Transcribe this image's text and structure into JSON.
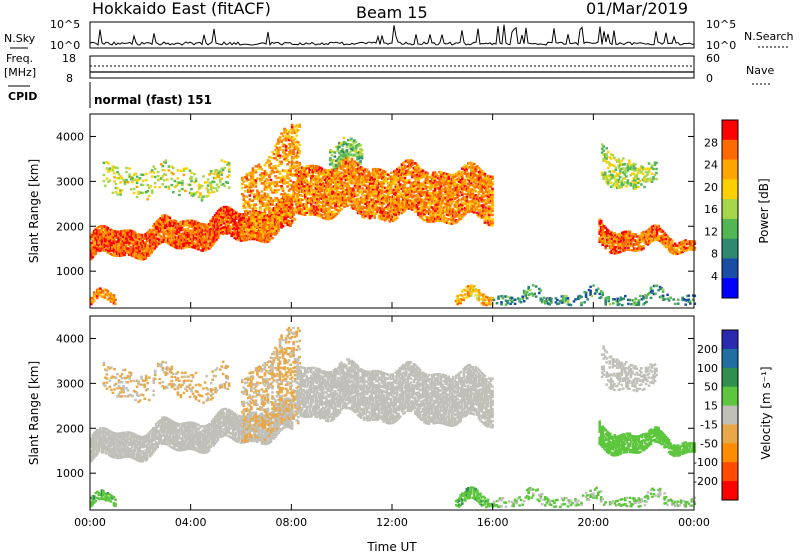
{
  "header": {
    "radar": "Hokkaido East (fitACF)",
    "beam": "Beam 15",
    "date": "01/Mar/2019"
  },
  "top_panels": {
    "nsky": {
      "label": "N.Sky",
      "left_ticks": [
        "10^5",
        "10^0"
      ],
      "right_ticks": [
        "10^5",
        "10^0"
      ],
      "right_label": "N.Search"
    },
    "freq": {
      "label_line1": "Freq.",
      "label_line2": "[MHz]",
      "left_ticks": [
        "18",
        "8"
      ],
      "right_ticks": [
        "60",
        "0"
      ],
      "right_label": "Nave"
    },
    "cpid": {
      "label": "CPID",
      "mode": "normal (fast) 151"
    }
  },
  "colors": {
    "power_scale": [
      "#0000ff",
      "#1a4da6",
      "#2e8a6e",
      "#52b752",
      "#a5d64b",
      "#ffd000",
      "#ffa500",
      "#ff6a00",
      "#ff0000"
    ],
    "velocity_scale": [
      "#2a2ab0",
      "#1f6fa0",
      "#2e8f4f",
      "#5ec63e",
      "#c0c0b8",
      "#e8a84a",
      "#ff8c00",
      "#ff4a00",
      "#ff0000"
    ]
  },
  "chart_data": [
    {
      "type": "heatmap",
      "panel": "power",
      "xlabel": "Time UT",
      "ylabel": "Slant Range [km]",
      "x_ticks": [
        "00:00",
        "04:00",
        "08:00",
        "12:00",
        "16:00",
        "20:00",
        "00:00"
      ],
      "x_range_hours": [
        0,
        24
      ],
      "y_range_km": [
        180,
        4500
      ],
      "y_ticks": [
        1000,
        2000,
        3000,
        4000
      ],
      "colorbar_label": "Power [dB]",
      "colorbar_ticks": [
        4,
        8,
        12,
        16,
        20,
        24,
        28
      ],
      "colorbar_range": [
        0,
        32
      ],
      "regions": [
        {
          "t0": 0.0,
          "t1": 8.0,
          "lo0": 1250,
          "lo1": 1850,
          "hi0": 1800,
          "hi1": 2500,
          "level": 27,
          "density": 0.85
        },
        {
          "t0": 6.0,
          "t1": 8.3,
          "lo0": 1700,
          "lo1": 2100,
          "hi0": 3100,
          "hi1": 4300,
          "level": 24,
          "density": 0.4
        },
        {
          "t0": 8.2,
          "t1": 16.0,
          "lo0": 2300,
          "lo1": 2100,
          "hi0": 3400,
          "hi1": 3200,
          "level": 25,
          "density": 0.7
        },
        {
          "t0": 9.5,
          "t1": 10.8,
          "lo0": 3300,
          "lo1": 3400,
          "hi0": 3800,
          "hi1": 3800,
          "level": 14,
          "density": 0.5
        },
        {
          "t0": 14.5,
          "t1": 16.0,
          "lo0": 250,
          "lo1": 250,
          "hi0": 500,
          "hi1": 500,
          "level": 22,
          "density": 0.6
        },
        {
          "t0": 16.0,
          "t1": 24.0,
          "lo0": 250,
          "lo1": 250,
          "hi0": 500,
          "hi1": 500,
          "level": 10,
          "density": 0.35
        },
        {
          "t0": 20.2,
          "t1": 24.0,
          "lo0": 1500,
          "lo1": 1500,
          "hi0": 2000,
          "hi1": 1700,
          "level": 26,
          "density": 0.8
        },
        {
          "t0": 20.3,
          "t1": 22.5,
          "lo0": 3000,
          "lo1": 2800,
          "hi0": 3800,
          "hi1": 3200,
          "level": 16,
          "density": 0.4
        },
        {
          "t0": 0.0,
          "t1": 1.0,
          "lo0": 250,
          "lo1": 250,
          "hi0": 450,
          "hi1": 450,
          "level": 25,
          "density": 0.6
        },
        {
          "t0": 0.5,
          "t1": 5.5,
          "lo0": 2700,
          "lo1": 2700,
          "hi0": 3300,
          "hi1": 3300,
          "level": 17,
          "density": 0.2
        }
      ]
    },
    {
      "type": "heatmap",
      "panel": "velocity",
      "xlabel": "Time UT",
      "ylabel": "Slant Range [km]",
      "x_ticks": [
        "00:00",
        "04:00",
        "08:00",
        "12:00",
        "16:00",
        "20:00",
        "00:00"
      ],
      "x_range_hours": [
        0,
        24
      ],
      "y_range_km": [
        180,
        4500
      ],
      "y_ticks": [
        1000,
        2000,
        3000,
        4000
      ],
      "colorbar_label": "Velocity [m s⁻¹]",
      "colorbar_ticks": [
        200,
        100,
        50,
        15,
        -15,
        -50,
        -100,
        -200
      ],
      "regions": [
        {
          "t0": 0.0,
          "t1": 8.0,
          "lo0": 1250,
          "lo1": 1850,
          "hi0": 1800,
          "hi1": 2500,
          "level": 0,
          "density": 0.85
        },
        {
          "t0": 6.0,
          "t1": 8.3,
          "lo0": 1700,
          "lo1": 2100,
          "hi0": 3100,
          "hi1": 4300,
          "level": -20,
          "density": 0.35
        },
        {
          "t0": 8.2,
          "t1": 16.0,
          "lo0": 2300,
          "lo1": 2100,
          "hi0": 3400,
          "hi1": 3200,
          "level": 0,
          "density": 0.75
        },
        {
          "t0": 14.5,
          "t1": 16.0,
          "lo0": 250,
          "lo1": 250,
          "hi0": 500,
          "hi1": 500,
          "level": 40,
          "density": 0.6
        },
        {
          "t0": 16.0,
          "t1": 24.0,
          "lo0": 250,
          "lo1": 250,
          "hi0": 500,
          "hi1": 500,
          "level": 20,
          "density": 0.3
        },
        {
          "t0": 20.2,
          "t1": 24.0,
          "lo0": 1500,
          "lo1": 1500,
          "hi0": 2000,
          "hi1": 1700,
          "level": 30,
          "density": 0.8
        },
        {
          "t0": 20.3,
          "t1": 22.5,
          "lo0": 3000,
          "lo1": 2800,
          "hi0": 3800,
          "hi1": 3200,
          "level": 0,
          "density": 0.4
        },
        {
          "t0": 0.0,
          "t1": 1.0,
          "lo0": 250,
          "lo1": 250,
          "hi0": 450,
          "hi1": 450,
          "level": 40,
          "density": 0.6
        },
        {
          "t0": 0.5,
          "t1": 5.5,
          "lo0": 2700,
          "lo1": 2700,
          "hi0": 3300,
          "hi1": 3300,
          "level": -20,
          "density": 0.2
        }
      ]
    }
  ]
}
